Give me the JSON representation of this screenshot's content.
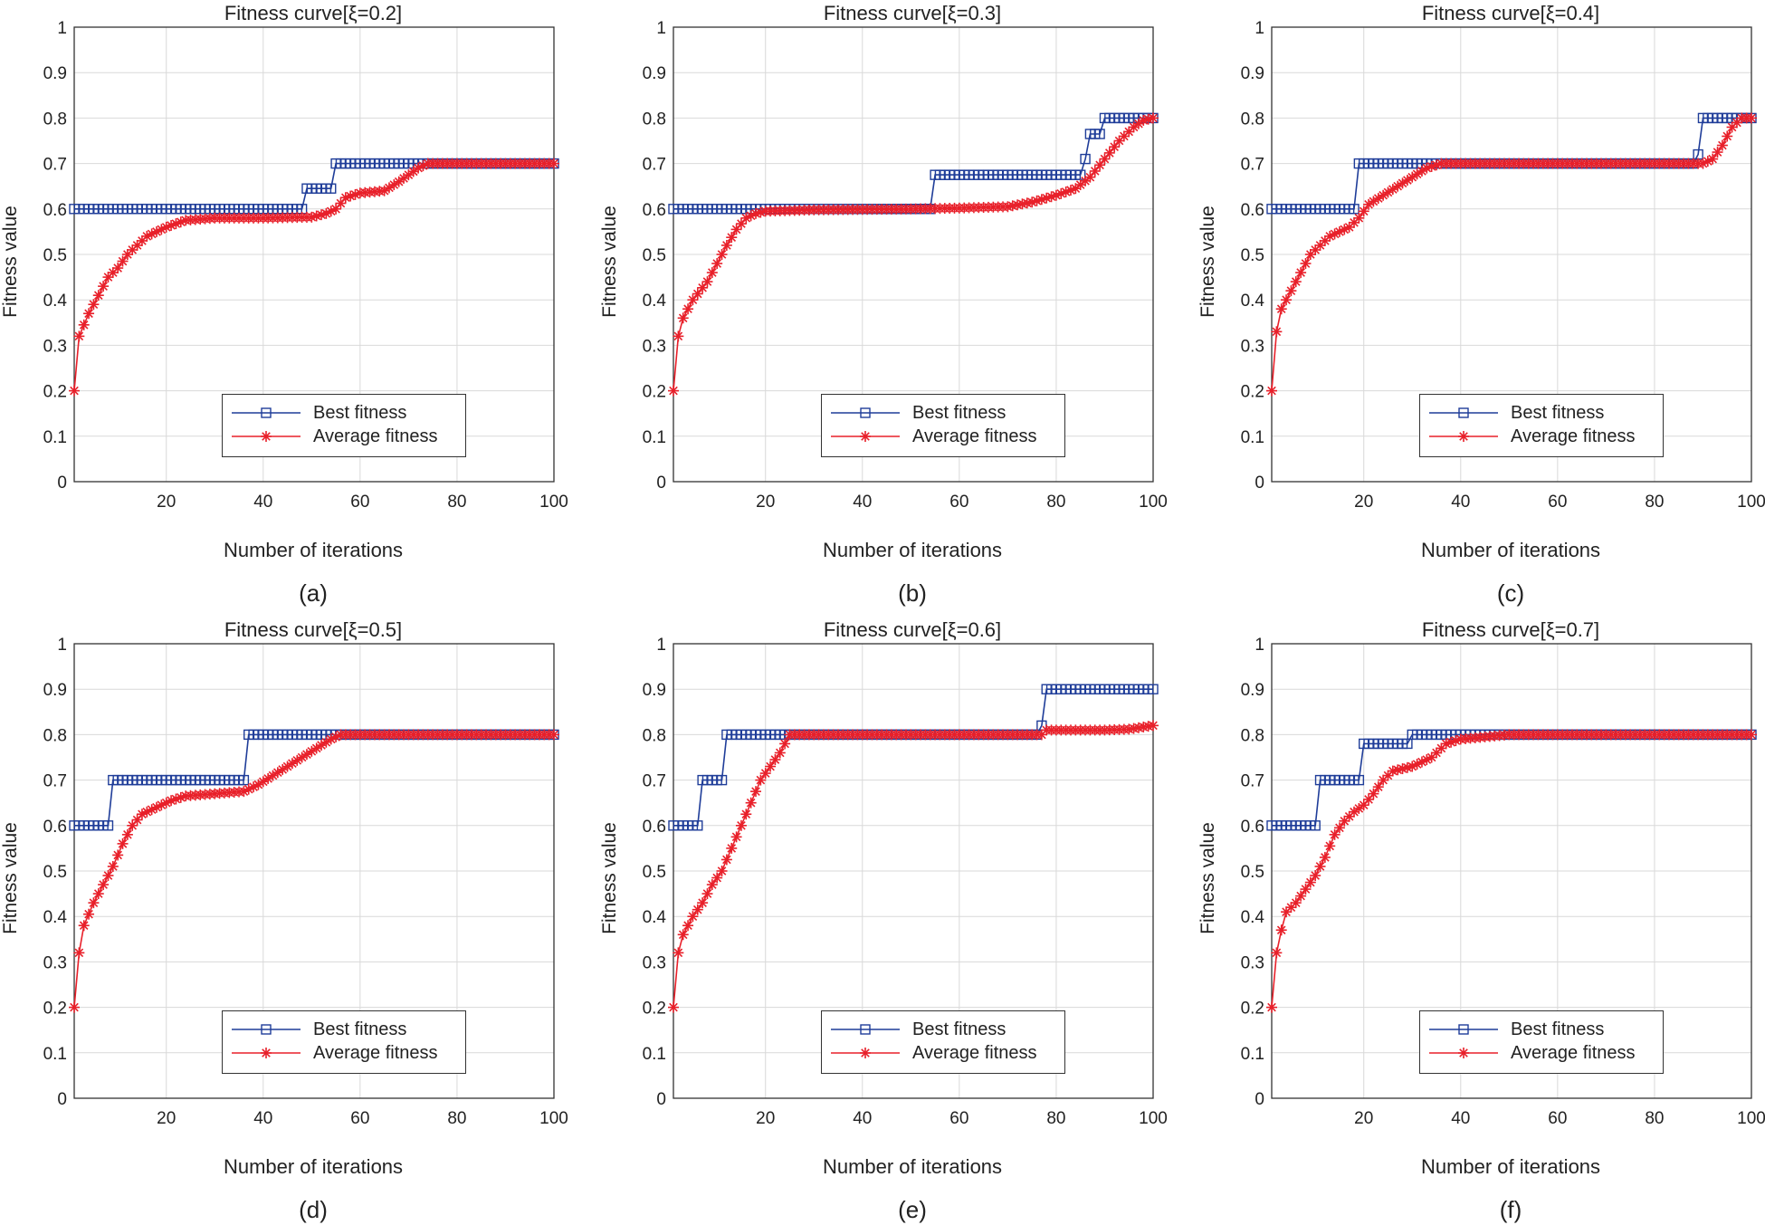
{
  "figure": {
    "colors": {
      "best": "#1f3d99",
      "average": "#e8202a",
      "grid": "#d9d9d9",
      "axis": "#333333"
    },
    "xticks": [
      20,
      40,
      60,
      80,
      100
    ],
    "yticks": [
      "0",
      "0.1",
      "0.2",
      "0.3",
      "0.4",
      "0.5",
      "0.6",
      "0.7",
      "0.8",
      "0.9",
      "1"
    ]
  },
  "chart_data": [
    {
      "type": "line",
      "panel_label": "(a)",
      "title": "Fitness curve[ξ=0.2]",
      "xlabel": "Number of iterations",
      "ylabel": "Fitness value",
      "xlim": [
        1,
        100
      ],
      "ylim": [
        0,
        1
      ],
      "grid": true,
      "legend_position": "bottom-right",
      "series": [
        {
          "name": "Best fitness",
          "marker": "square",
          "points": [
            [
              1,
              0.6
            ],
            [
              48,
              0.6
            ],
            [
              49,
              0.645
            ],
            [
              54,
              0.645
            ],
            [
              55,
              0.7
            ],
            [
              100,
              0.7
            ]
          ]
        },
        {
          "name": "Average fitness",
          "marker": "asterisk",
          "points": [
            [
              1,
              0.2
            ],
            [
              2,
              0.32
            ],
            [
              4,
              0.37
            ],
            [
              6,
              0.41
            ],
            [
              8,
              0.45
            ],
            [
              10,
              0.47
            ],
            [
              12,
              0.5
            ],
            [
              14,
              0.52
            ],
            [
              16,
              0.54
            ],
            [
              18,
              0.55
            ],
            [
              20,
              0.56
            ],
            [
              24,
              0.575
            ],
            [
              30,
              0.58
            ],
            [
              40,
              0.58
            ],
            [
              50,
              0.582
            ],
            [
              53,
              0.59
            ],
            [
              55,
              0.6
            ],
            [
              57,
              0.625
            ],
            [
              60,
              0.635
            ],
            [
              65,
              0.64
            ],
            [
              68,
              0.66
            ],
            [
              72,
              0.69
            ],
            [
              74,
              0.7
            ],
            [
              100,
              0.7
            ]
          ]
        }
      ]
    },
    {
      "type": "line",
      "panel_label": "(b)",
      "title": "Fitness curve[ξ=0.3]",
      "xlabel": "Number of iterations",
      "ylabel": "Fitness value",
      "xlim": [
        1,
        100
      ],
      "ylim": [
        0,
        1
      ],
      "grid": true,
      "legend_position": "bottom-right",
      "series": [
        {
          "name": "Best fitness",
          "marker": "square",
          "points": [
            [
              1,
              0.6
            ],
            [
              54,
              0.6
            ],
            [
              55,
              0.675
            ],
            [
              85,
              0.675
            ],
            [
              86,
              0.71
            ],
            [
              87,
              0.765
            ],
            [
              89,
              0.765
            ],
            [
              90,
              0.8
            ],
            [
              100,
              0.8
            ]
          ]
        },
        {
          "name": "Average fitness",
          "marker": "asterisk",
          "points": [
            [
              1,
              0.2
            ],
            [
              2,
              0.32
            ],
            [
              3,
              0.36
            ],
            [
              5,
              0.4
            ],
            [
              8,
              0.44
            ],
            [
              10,
              0.48
            ],
            [
              12,
              0.52
            ],
            [
              14,
              0.555
            ],
            [
              16,
              0.58
            ],
            [
              18,
              0.59
            ],
            [
              20,
              0.595
            ],
            [
              30,
              0.598
            ],
            [
              50,
              0.6
            ],
            [
              60,
              0.602
            ],
            [
              70,
              0.605
            ],
            [
              75,
              0.615
            ],
            [
              80,
              0.63
            ],
            [
              84,
              0.645
            ],
            [
              87,
              0.67
            ],
            [
              90,
              0.71
            ],
            [
              93,
              0.75
            ],
            [
              96,
              0.78
            ],
            [
              98,
              0.795
            ],
            [
              100,
              0.8
            ]
          ]
        }
      ]
    },
    {
      "type": "line",
      "panel_label": "(c)",
      "title": "Fitness curve[ξ=0.4]",
      "xlabel": "Number of iterations",
      "ylabel": "Fitness value",
      "xlim": [
        1,
        100
      ],
      "ylim": [
        0,
        1
      ],
      "grid": true,
      "legend_position": "bottom-right",
      "series": [
        {
          "name": "Best fitness",
          "marker": "square",
          "points": [
            [
              1,
              0.6
            ],
            [
              18,
              0.6
            ],
            [
              19,
              0.7
            ],
            [
              88,
              0.7
            ],
            [
              89,
              0.72
            ],
            [
              90,
              0.8
            ],
            [
              100,
              0.8
            ]
          ]
        },
        {
          "name": "Average fitness",
          "marker": "asterisk",
          "points": [
            [
              1,
              0.2
            ],
            [
              2,
              0.33
            ],
            [
              3,
              0.38
            ],
            [
              5,
              0.42
            ],
            [
              7,
              0.46
            ],
            [
              9,
              0.5
            ],
            [
              11,
              0.52
            ],
            [
              13,
              0.54
            ],
            [
              15,
              0.55
            ],
            [
              17,
              0.56
            ],
            [
              19,
              0.58
            ],
            [
              21,
              0.61
            ],
            [
              24,
              0.63
            ],
            [
              27,
              0.65
            ],
            [
              30,
              0.67
            ],
            [
              33,
              0.69
            ],
            [
              36,
              0.7
            ],
            [
              90,
              0.7
            ],
            [
              92,
              0.71
            ],
            [
              94,
              0.74
            ],
            [
              96,
              0.78
            ],
            [
              98,
              0.8
            ],
            [
              100,
              0.8
            ]
          ]
        }
      ]
    },
    {
      "type": "line",
      "panel_label": "(d)",
      "title": "Fitness curve[ξ=0.5]",
      "xlabel": "Number of iterations",
      "ylabel": "Fitness value",
      "xlim": [
        1,
        100
      ],
      "ylim": [
        0,
        1
      ],
      "grid": true,
      "legend_position": "bottom-right",
      "series": [
        {
          "name": "Best fitness",
          "marker": "square",
          "points": [
            [
              1,
              0.6
            ],
            [
              8,
              0.6
            ],
            [
              9,
              0.7
            ],
            [
              36,
              0.7
            ],
            [
              37,
              0.8
            ],
            [
              100,
              0.8
            ]
          ]
        },
        {
          "name": "Average fitness",
          "marker": "asterisk",
          "points": [
            [
              1,
              0.2
            ],
            [
              2,
              0.32
            ],
            [
              3,
              0.38
            ],
            [
              5,
              0.43
            ],
            [
              7,
              0.47
            ],
            [
              9,
              0.51
            ],
            [
              11,
              0.56
            ],
            [
              13,
              0.6
            ],
            [
              15,
              0.625
            ],
            [
              18,
              0.64
            ],
            [
              21,
              0.655
            ],
            [
              24,
              0.665
            ],
            [
              30,
              0.67
            ],
            [
              36,
              0.675
            ],
            [
              39,
              0.69
            ],
            [
              42,
              0.71
            ],
            [
              45,
              0.73
            ],
            [
              48,
              0.75
            ],
            [
              51,
              0.77
            ],
            [
              54,
              0.79
            ],
            [
              56,
              0.8
            ],
            [
              100,
              0.8
            ]
          ]
        }
      ]
    },
    {
      "type": "line",
      "panel_label": "(e)",
      "title": "Fitness curve[ξ=0.6]",
      "xlabel": "Number of iterations",
      "ylabel": "Fitness value",
      "xlim": [
        1,
        100
      ],
      "ylim": [
        0,
        1
      ],
      "grid": true,
      "legend_position": "bottom-right",
      "series": [
        {
          "name": "Best fitness",
          "marker": "square",
          "points": [
            [
              1,
              0.6
            ],
            [
              6,
              0.6
            ],
            [
              7,
              0.7
            ],
            [
              11,
              0.7
            ],
            [
              12,
              0.8
            ],
            [
              76,
              0.8
            ],
            [
              77,
              0.82
            ],
            [
              78,
              0.9
            ],
            [
              100,
              0.9
            ]
          ]
        },
        {
          "name": "Average fitness",
          "marker": "asterisk",
          "points": [
            [
              1,
              0.2
            ],
            [
              2,
              0.32
            ],
            [
              3,
              0.36
            ],
            [
              5,
              0.4
            ],
            [
              7,
              0.43
            ],
            [
              9,
              0.47
            ],
            [
              11,
              0.5
            ],
            [
              13,
              0.55
            ],
            [
              15,
              0.6
            ],
            [
              17,
              0.65
            ],
            [
              19,
              0.7
            ],
            [
              21,
              0.73
            ],
            [
              23,
              0.76
            ],
            [
              25,
              0.8
            ],
            [
              77,
              0.8
            ],
            [
              78,
              0.81
            ],
            [
              90,
              0.81
            ],
            [
              95,
              0.812
            ],
            [
              100,
              0.82
            ]
          ]
        }
      ]
    },
    {
      "type": "line",
      "panel_label": "(f)",
      "title": "Fitness curve[ξ=0.7]",
      "xlabel": "Number of iterations",
      "ylabel": "Fitness value",
      "xlim": [
        1,
        100
      ],
      "ylim": [
        0,
        1
      ],
      "grid": true,
      "legend_position": "bottom-right",
      "series": [
        {
          "name": "Best fitness",
          "marker": "square",
          "points": [
            [
              1,
              0.6
            ],
            [
              10,
              0.6
            ],
            [
              11,
              0.7
            ],
            [
              19,
              0.7
            ],
            [
              20,
              0.78
            ],
            [
              29,
              0.78
            ],
            [
              30,
              0.8
            ],
            [
              100,
              0.8
            ]
          ]
        },
        {
          "name": "Average fitness",
          "marker": "asterisk",
          "points": [
            [
              1,
              0.2
            ],
            [
              2,
              0.32
            ],
            [
              3,
              0.37
            ],
            [
              4,
              0.41
            ],
            [
              6,
              0.43
            ],
            [
              8,
              0.46
            ],
            [
              10,
              0.49
            ],
            [
              12,
              0.53
            ],
            [
              14,
              0.58
            ],
            [
              16,
              0.61
            ],
            [
              18,
              0.63
            ],
            [
              20,
              0.645
            ],
            [
              22,
              0.67
            ],
            [
              24,
              0.7
            ],
            [
              26,
              0.72
            ],
            [
              30,
              0.73
            ],
            [
              34,
              0.75
            ],
            [
              37,
              0.78
            ],
            [
              40,
              0.79
            ],
            [
              50,
              0.8
            ],
            [
              100,
              0.8
            ]
          ]
        }
      ]
    }
  ]
}
